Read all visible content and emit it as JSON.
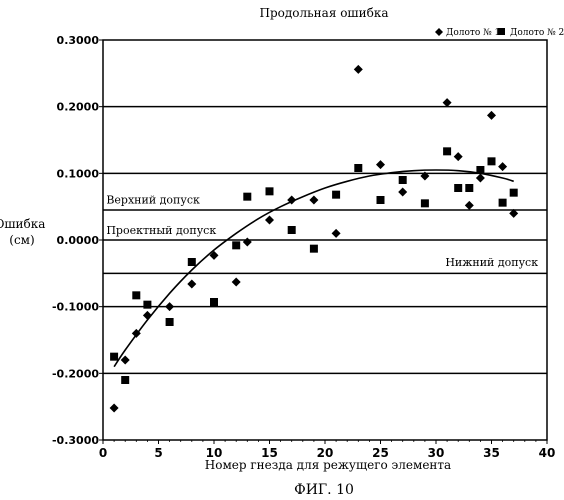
{
  "chart_data": {
    "type": "scatter",
    "title": "Продольная ошибка",
    "xlabel": "Номер гнезда для режущего элемента",
    "ylabel_line1": "Ошибка",
    "ylabel_line2": "(см)",
    "figure_caption": "ФИГ. 10",
    "xlim": [
      0,
      40
    ],
    "ylim": [
      -0.3,
      0.3
    ],
    "x_ticks": [
      0,
      5,
      10,
      15,
      20,
      25,
      30,
      35,
      40
    ],
    "y_ticks": [
      0.3,
      0.2,
      0.1,
      0.0,
      -0.1,
      -0.2,
      -0.3
    ],
    "y_tick_labels": [
      "0.3000",
      "0.2000",
      "0.1000",
      "0.0000",
      "-0.1000",
      "-0.2000",
      "-0.3000"
    ],
    "horizontal_lines": [
      0.2,
      0.1,
      0.045,
      0.0,
      -0.05,
      -0.1,
      -0.2
    ],
    "annotations": [
      {
        "text": "Верхний допуск",
        "x": 0.3,
        "y": 0.055,
        "anchor": "start"
      },
      {
        "text": "Проектный допуск",
        "x": 0.3,
        "y": 0.009,
        "anchor": "start"
      },
      {
        "text": "Нижний допуск",
        "x": 39.2,
        "y": -0.039,
        "anchor": "end"
      }
    ],
    "legend_position": "top-right",
    "series": [
      {
        "name": "Долото № 1",
        "marker": "diamond",
        "x": [
          1,
          2,
          3,
          4,
          6,
          8,
          10,
          12,
          13,
          15,
          17,
          19,
          21,
          23,
          25,
          27,
          29,
          31,
          32,
          33,
          34,
          35,
          36,
          37
        ],
        "y": [
          -0.252,
          -0.18,
          -0.14,
          -0.113,
          -0.1,
          -0.066,
          -0.023,
          -0.063,
          -0.003,
          0.03,
          0.06,
          0.06,
          0.01,
          0.256,
          0.113,
          0.072,
          0.096,
          0.206,
          0.125,
          0.052,
          0.093,
          0.187,
          0.11,
          0.04
        ]
      },
      {
        "name": "Долото № 2",
        "marker": "square",
        "x": [
          1,
          2,
          3,
          4,
          6,
          8,
          10,
          12,
          13,
          15,
          17,
          19,
          21,
          23,
          25,
          27,
          29,
          31,
          32,
          33,
          34,
          35,
          36,
          37
        ],
        "y": [
          -0.175,
          -0.21,
          -0.083,
          -0.097,
          -0.123,
          -0.033,
          -0.093,
          -0.008,
          0.065,
          0.073,
          0.015,
          -0.013,
          0.068,
          0.108,
          0.06,
          0.09,
          0.055,
          0.133,
          0.078,
          0.078,
          0.105,
          0.118,
          0.056,
          0.071
        ]
      }
    ],
    "trendline": {
      "type": "polynomial",
      "x": [
        1,
        2,
        4,
        6,
        8,
        10,
        12,
        14,
        16,
        18,
        20,
        22,
        24,
        26,
        28,
        30,
        32,
        34,
        36,
        37
      ],
      "y": [
        -0.19,
        -0.165,
        -0.12,
        -0.08,
        -0.045,
        -0.015,
        0.01,
        0.032,
        0.05,
        0.065,
        0.078,
        0.088,
        0.096,
        0.101,
        0.104,
        0.105,
        0.104,
        0.1,
        0.093,
        0.088
      ]
    }
  }
}
